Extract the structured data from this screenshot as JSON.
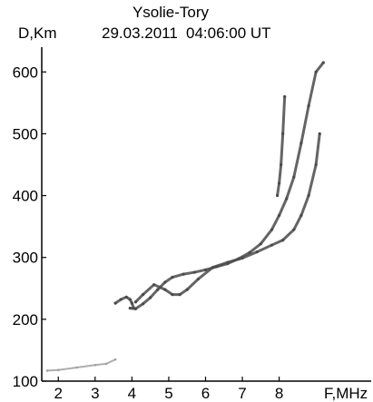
{
  "chart_data": {
    "type": "scatter",
    "title": "Ysolie-Tory",
    "ylabel": "D,Km",
    "xlabel": "F,MHz",
    "date": "29.03.2011",
    "time": "04:06:00 UT",
    "xlim": [
      1.55,
      10.5
    ],
    "ylim": [
      100,
      640
    ],
    "x_ticks": [
      2,
      3,
      4,
      5,
      6,
      7,
      8
    ],
    "y_ticks": [
      100,
      200,
      300,
      400,
      500,
      600
    ],
    "grid": false,
    "colors": {
      "trace": "#4a4a4a",
      "noise": "#a0a0a0",
      "axis": "#000000"
    },
    "series": [
      {
        "x": [
          3.95,
          4.1,
          4.3,
          4.5,
          4.7,
          4.9,
          5.1,
          5.4,
          5.7,
          6.0,
          6.3,
          6.6,
          6.9,
          7.2,
          7.5,
          7.8,
          8.0,
          8.2,
          8.4,
          8.6,
          8.8,
          9.0,
          9.2
        ],
        "y": [
          218,
          217,
          225,
          235,
          248,
          260,
          268,
          273,
          276,
          280,
          285,
          290,
          298,
          308,
          322,
          345,
          368,
          395,
          430,
          485,
          545,
          600,
          615
        ]
      },
      {
        "x": [
          4.1,
          4.3,
          4.6,
          4.9,
          5.1,
          5.3,
          5.5,
          5.8,
          6.2,
          6.6,
          7.0,
          7.4,
          7.8,
          8.1,
          8.4,
          8.6,
          8.8,
          9.0,
          9.1
        ],
        "y": [
          228,
          240,
          256,
          248,
          240,
          240,
          248,
          265,
          284,
          292,
          299,
          309,
          320,
          328,
          345,
          368,
          400,
          450,
          500
        ]
      },
      {
        "x": [
          3.55,
          3.7,
          3.85,
          3.95,
          4.0,
          4.05
        ],
        "y": [
          226,
          232,
          236,
          232,
          226,
          218
        ]
      },
      {
        "x": [
          7.95,
          8.0,
          8.05,
          8.1,
          8.15
        ],
        "y": [
          400,
          420,
          450,
          500,
          560
        ]
      },
      {
        "x": [
          1.7,
          2.0,
          2.5,
          3.0,
          3.3,
          3.55
        ],
        "y": [
          117,
          118,
          122,
          126,
          128,
          135
        ]
      }
    ]
  }
}
